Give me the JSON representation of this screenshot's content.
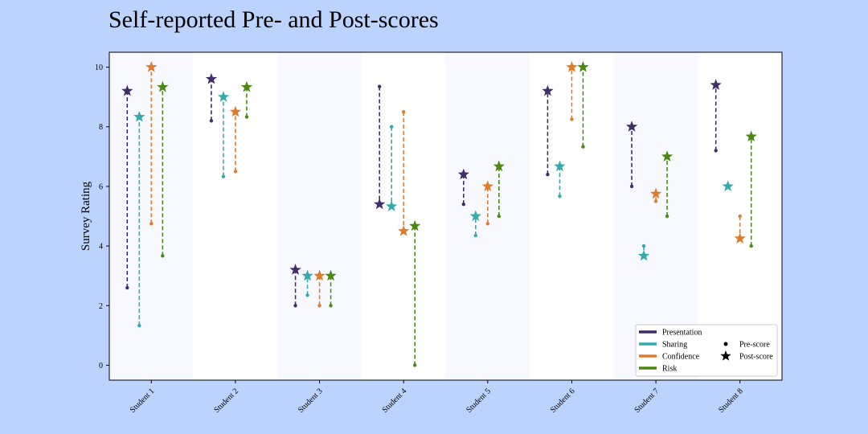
{
  "chart_data": {
    "type": "scatter",
    "title": "Self-reported Pre- and Post-scores",
    "xlabel": "",
    "ylabel": "Survey Rating",
    "ylim": [
      -0.5,
      10.5
    ],
    "yticks": [
      0,
      2,
      4,
      6,
      8,
      10
    ],
    "categories": [
      "Student 1",
      "Student 2",
      "Student 3",
      "Student 4",
      "Student 5",
      "Student 6",
      "Student 7",
      "Student 8"
    ],
    "series": [
      {
        "name": "Presentation",
        "color": "#3f2e6b",
        "pre": [
          2.6,
          8.2,
          2.0,
          9.35,
          5.4,
          6.4,
          6.0,
          7.2
        ],
        "post": [
          9.2,
          9.6,
          3.2,
          5.4,
          6.4,
          9.2,
          8.0,
          9.4
        ]
      },
      {
        "name": "Sharing",
        "color": "#35aaae",
        "pre": [
          1.33,
          6.33,
          2.35,
          8.0,
          4.35,
          5.67,
          4.0,
          6.0
        ],
        "post": [
          8.33,
          9.0,
          3.0,
          5.33,
          5.0,
          6.67,
          3.67,
          6.0
        ]
      },
      {
        "name": "Confidence",
        "color": "#e07b2c",
        "pre": [
          4.75,
          6.5,
          2.0,
          8.5,
          4.75,
          8.25,
          5.5,
          5.0
        ],
        "post": [
          10.0,
          8.5,
          3.0,
          4.5,
          6.0,
          10.0,
          5.75,
          4.25
        ]
      },
      {
        "name": "Risk",
        "color": "#4a8a12",
        "pre": [
          3.67,
          8.33,
          2.0,
          0.0,
          5.0,
          7.33,
          5.0,
          4.0
        ],
        "post": [
          9.33,
          9.33,
          3.0,
          4.67,
          6.67,
          10.0,
          7.0,
          7.67
        ]
      }
    ],
    "legend": {
      "placement": "lower-right",
      "marker_labels": [
        "Pre-score",
        "Post-score"
      ]
    },
    "grid": false,
    "shaded_alternate_columns": true,
    "colors": {
      "page_background": "#bcd3fd",
      "plot_background": "#ffffff",
      "band": "#f8f9ff"
    }
  }
}
